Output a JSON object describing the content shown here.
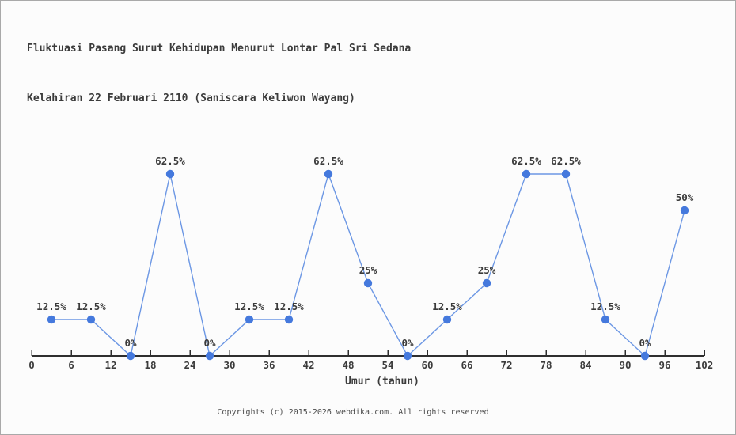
{
  "header": {
    "title_line1": "Fluktuasi Pasang Surut Kehidupan Menurut Lontar Pal Sri Sedana",
    "title_line2": "Kelahiran 22 Februari 2110 (Saniscara Keliwon Wayang)"
  },
  "footer": {
    "copyright": "Copyrights (c) 2015-2026 webdika.com. All rights reserved"
  },
  "chart_data": {
    "type": "line",
    "title": "Fluktuasi Pasang Surut Kehidupan Menurut Lontar Pal Sri Sedana Kelahiran 22 Februari 2110 (Saniscara Keliwon Wayang)",
    "xlabel": "Umur (tahun)",
    "ylabel": "",
    "x": [
      3,
      9,
      15,
      21,
      27,
      33,
      39,
      45,
      51,
      57,
      63,
      69,
      75,
      81,
      87,
      93,
      99
    ],
    "values": [
      12.5,
      12.5,
      0,
      62.5,
      0,
      12.5,
      12.5,
      62.5,
      25,
      0,
      12.5,
      25,
      62.5,
      62.5,
      12.5,
      0,
      50
    ],
    "point_labels": [
      "12.5%",
      "12.5%",
      "0%",
      "62.5%",
      "0%",
      "12.5%",
      "12.5%",
      "62.5%",
      "25%",
      "0%",
      "12.5%",
      "25%",
      "62.5%",
      "62.5%",
      "12.5%",
      "0%",
      "50%"
    ],
    "x_ticks": [
      0,
      6,
      12,
      18,
      24,
      30,
      36,
      42,
      48,
      54,
      60,
      66,
      72,
      78,
      84,
      90,
      96,
      102
    ],
    "xlim": [
      0,
      102
    ],
    "ylim": [
      0,
      100
    ],
    "grid": false,
    "legend": "none",
    "colors": {
      "line": "#6c97e4",
      "marker": "#4579dd",
      "axis": "#2e2e2e",
      "text": "#3b3b3b"
    }
  }
}
